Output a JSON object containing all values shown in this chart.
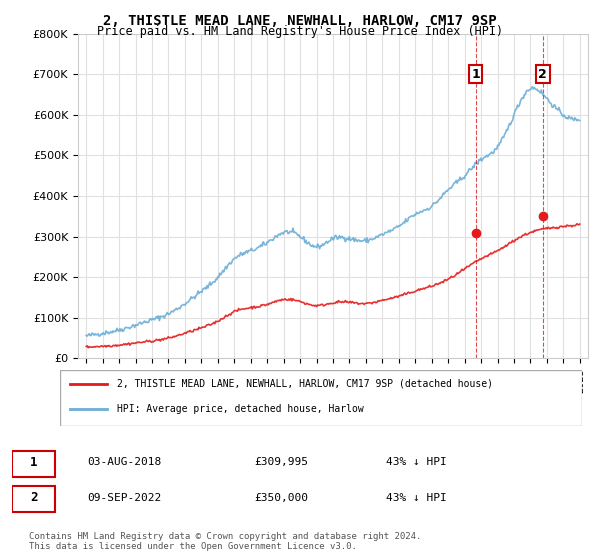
{
  "title": "2, THISTLE MEAD LANE, NEWHALL, HARLOW, CM17 9SP",
  "subtitle": "Price paid vs. HM Land Registry's House Price Index (HPI)",
  "ylabel": "",
  "ylim": [
    0,
    800000
  ],
  "yticks": [
    0,
    100000,
    200000,
    300000,
    400000,
    500000,
    600000,
    700000,
    800000
  ],
  "ytick_labels": [
    "£0",
    "£100K",
    "£200K",
    "£300K",
    "£400K",
    "£500K",
    "£600K",
    "£700K",
    "£800K"
  ],
  "hpi_color": "#6baed6",
  "price_color": "#e41a1c",
  "annotation_box_color": "#cc0000",
  "sale1_date": "2018-08-03",
  "sale1_price": 309995,
  "sale1_label": "1",
  "sale2_date": "2022-09-09",
  "sale2_price": 350000,
  "sale2_label": "2",
  "legend_line1": "2, THISTLE MEAD LANE, NEWHALL, HARLOW, CM17 9SP (detached house)",
  "legend_line2": "HPI: Average price, detached house, Harlow",
  "table_row1": [
    "1",
    "03-AUG-2018",
    "£309,995",
    "43% ↓ HPI"
  ],
  "table_row2": [
    "2",
    "09-SEP-2022",
    "£350,000",
    "43% ↓ HPI"
  ],
  "footnote": "Contains HM Land Registry data © Crown copyright and database right 2024.\nThis data is licensed under the Open Government Licence v3.0.",
  "hpi_years": [
    1995,
    1996,
    1997,
    1998,
    1999,
    2000,
    2001,
    2002,
    2003,
    2004,
    2005,
    2006,
    2007,
    2008,
    2009,
    2010,
    2011,
    2012,
    2013,
    2014,
    2015,
    2016,
    2017,
    2018,
    2019,
    2020,
    2021,
    2022,
    2023,
    2024,
    2025
  ],
  "hpi_values": [
    55000,
    62000,
    70000,
    82000,
    95000,
    110000,
    135000,
    165000,
    200000,
    245000,
    265000,
    285000,
    310000,
    300000,
    275000,
    295000,
    295000,
    290000,
    305000,
    325000,
    355000,
    375000,
    415000,
    450000,
    490000,
    520000,
    600000,
    665000,
    640000,
    600000,
    590000
  ],
  "price_years": [
    1995,
    1996,
    1997,
    1998,
    1999,
    2000,
    2001,
    2002,
    2003,
    2004,
    2005,
    2006,
    2007,
    2008,
    2009,
    2010,
    2011,
    2012,
    2013,
    2014,
    2015,
    2016,
    2017,
    2018,
    2019,
    2020,
    2021,
    2022,
    2023,
    2024,
    2025
  ],
  "price_values": [
    28000,
    30000,
    33000,
    38000,
    43000,
    50000,
    62000,
    75000,
    92000,
    115000,
    125000,
    133000,
    145000,
    140000,
    130000,
    137000,
    138000,
    135000,
    143000,
    153000,
    166000,
    178000,
    195000,
    220000,
    245000,
    265000,
    290000,
    310000,
    320000,
    325000,
    330000
  ]
}
